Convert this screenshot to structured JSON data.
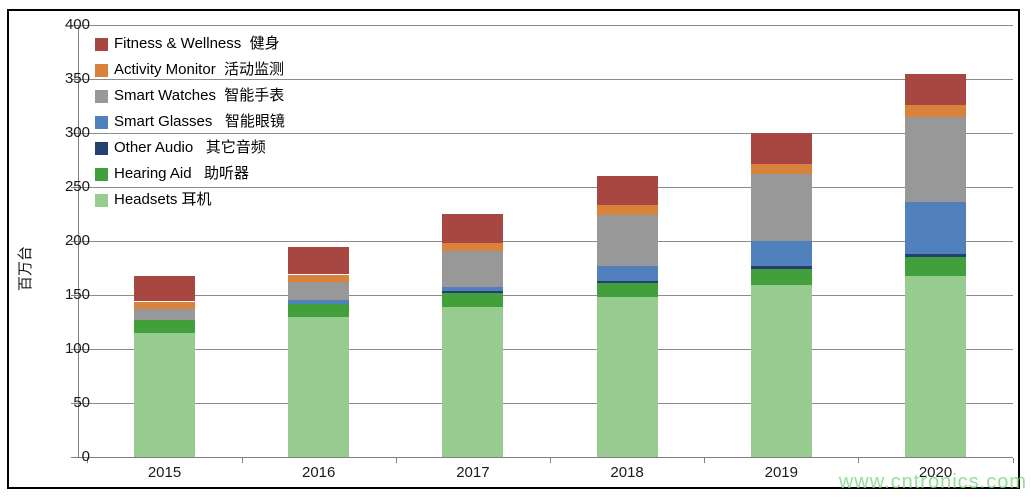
{
  "watermark": "www.cntronics.com",
  "chart_data": {
    "type": "bar",
    "stacked": true,
    "title": "",
    "ylabel": "百万台",
    "xlabel": "",
    "ylim": [
      0,
      400
    ],
    "ytick_step": 50,
    "yticks": [
      "0",
      "50",
      "100",
      "150",
      "200",
      "250",
      "300",
      "350",
      "400"
    ],
    "grid": "horizontal",
    "legend_position": "top-left-inside",
    "legend_order": "top-series-first",
    "categories": [
      "2015",
      "2016",
      "2017",
      "2018",
      "2019",
      "2020"
    ],
    "series": [
      {
        "key": "headsets",
        "name": "Headsets 耳机",
        "color": "#98CB8F",
        "values": [
          115,
          130,
          139,
          148,
          159,
          168
        ]
      },
      {
        "key": "hearing-aid",
        "name": "Hearing Aid   助听器",
        "color": "#42A03C",
        "values": [
          12,
          12,
          13,
          13,
          15,
          17
        ]
      },
      {
        "key": "other-audio",
        "name": "Other Audio   其它音频",
        "color": "#25406E",
        "values": [
          0,
          0,
          2,
          2,
          3,
          3
        ]
      },
      {
        "key": "smart-glasses",
        "name": "Smart Glasses   智能眼镜",
        "color": "#5081BD",
        "values": [
          0,
          3,
          3,
          14,
          23,
          48
        ]
      },
      {
        "key": "smart-watches",
        "name": "Smart Watches  智能手表",
        "color": "#989898",
        "values": [
          10,
          17,
          34,
          47,
          62,
          79
        ]
      },
      {
        "key": "activity-monitor",
        "name": "Activity Monitor  活动监测",
        "color": "#D9823C",
        "values": [
          7,
          7,
          7,
          9,
          9,
          11
        ]
      },
      {
        "key": "fitness-wellness",
        "name": "Fitness & Wellness  健身",
        "color": "#A84742",
        "values": [
          24,
          25,
          27,
          27,
          29,
          29
        ]
      }
    ],
    "totals": [
      168,
      194,
      225,
      260,
      300,
      355
    ]
  }
}
